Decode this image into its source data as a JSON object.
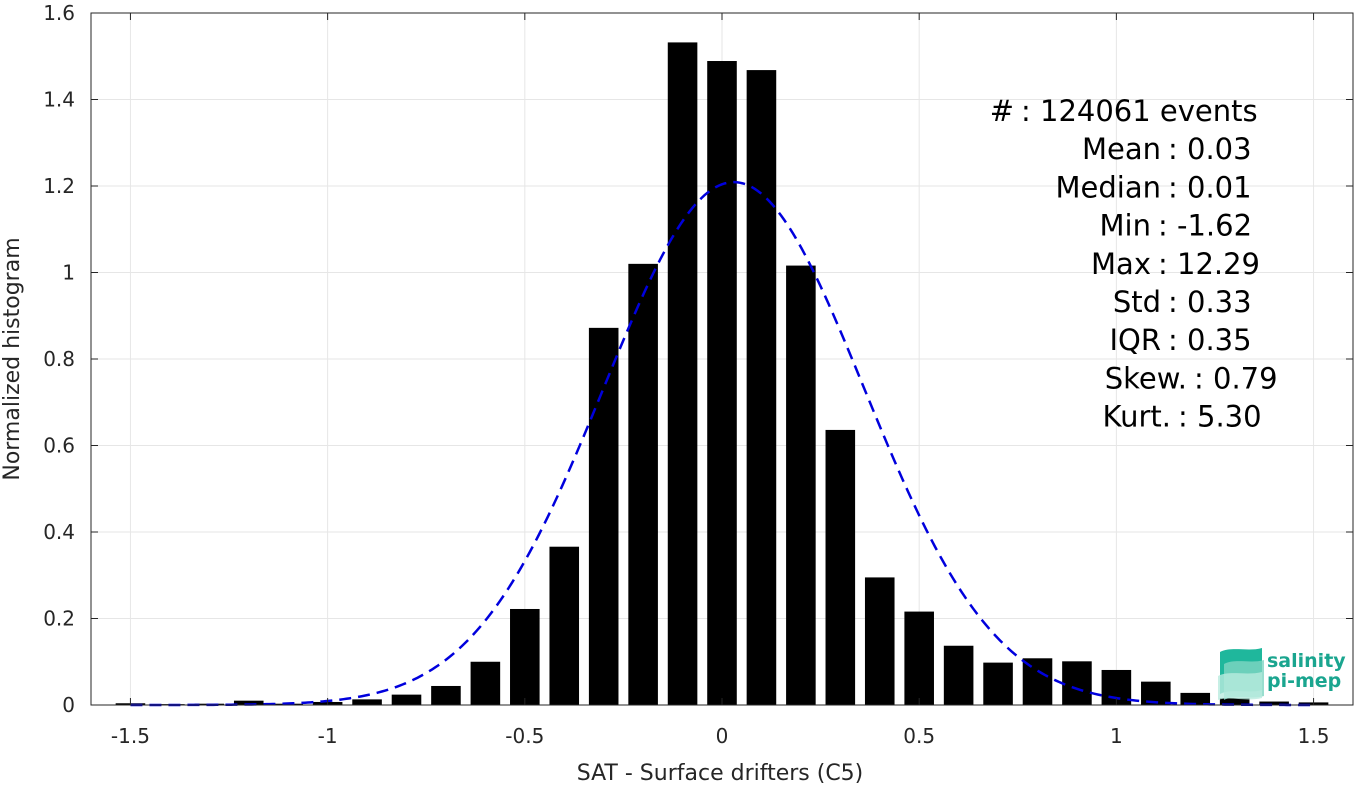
{
  "chart_data": {
    "type": "bar",
    "xlabel": "SAT - Surface drifters (C5)",
    "ylabel": "Normalized histogram",
    "xlim": [
      -1.6,
      1.6
    ],
    "ylim": [
      0,
      1.6
    ],
    "grid": true,
    "x_ticks": [
      -1.5,
      -1,
      -0.5,
      0,
      0.5,
      1,
      1.5
    ],
    "x_tick_labels": [
      "-1.5",
      "-1",
      "-0.5",
      "0",
      "0.5",
      "1",
      "1.5"
    ],
    "y_ticks": [
      0,
      0.2,
      0.4,
      0.6,
      0.8,
      1,
      1.2,
      1.4,
      1.6
    ],
    "y_tick_labels": [
      "0",
      "0.2",
      "0.4",
      "0.6",
      "0.8",
      "1",
      "1.2",
      "1.4",
      "1.6"
    ],
    "bar_color": "#000000",
    "bar_width": 0.075,
    "x": [
      -1.5,
      -1.4,
      -1.3,
      -1.2,
      -1.1,
      -1.0,
      -0.9,
      -0.8,
      -0.7,
      -0.6,
      -0.5,
      -0.4,
      -0.3,
      -0.2,
      -0.1,
      0.0,
      0.1,
      0.2,
      0.3,
      0.4,
      0.5,
      0.6,
      0.7,
      0.8,
      0.9,
      1.0,
      1.1,
      1.2,
      1.3,
      1.4,
      1.5
    ],
    "values": [
      0.004,
      0.002,
      0.003,
      0.01,
      0.003,
      0.007,
      0.013,
      0.024,
      0.044,
      0.1,
      0.222,
      0.366,
      0.872,
      1.02,
      1.532,
      1.489,
      1.468,
      1.016,
      0.636,
      0.295,
      0.216,
      0.137,
      0.098,
      0.108,
      0.101,
      0.081,
      0.054,
      0.028,
      0.016,
      0.008,
      0.006
    ],
    "fit": {
      "style": "dashed",
      "color": "#0000dd",
      "mean": 0.03,
      "std": 0.33
    },
    "annotations": [
      "#  : 124061 events",
      "Mean : 0.03",
      "Median : 0.01",
      "Min : -1.62",
      "Max : 12.29",
      "Std : 0.33",
      "IQR : 0.35",
      "Skew. : 0.79",
      "Kurt. : 5.30"
    ]
  },
  "logo": {
    "line1": "salinity",
    "line2": "pi-mep",
    "color": "#1aa58f"
  }
}
